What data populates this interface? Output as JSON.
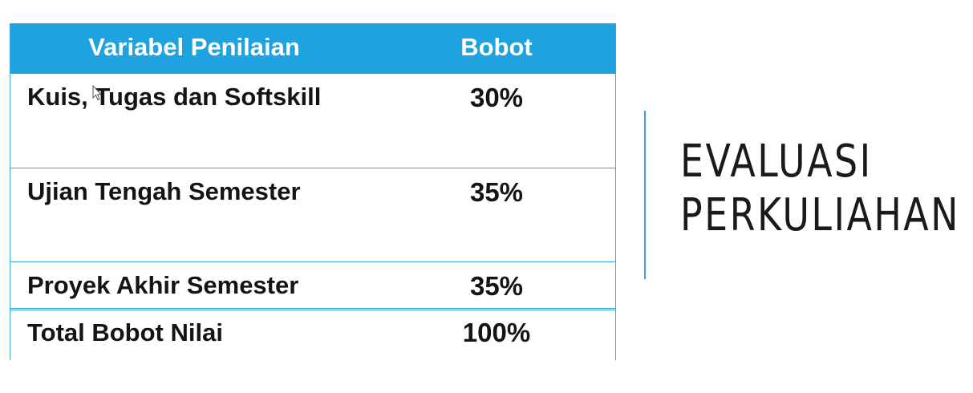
{
  "table": {
    "headers": {
      "variable": "Variabel Penilaian",
      "weight": "Bobot"
    },
    "rows": [
      {
        "label": "Kuis, Tugas dan Softskill",
        "value": "30%"
      },
      {
        "label": "Ujian Tengah Semester",
        "value": "35%"
      },
      {
        "label": "Proyek Akhir Semester",
        "value": "35%"
      }
    ],
    "total": {
      "label": "Total Bobot Nilai",
      "value": "100%"
    }
  },
  "title": {
    "line1": "EVALUASI",
    "line2": "PERKULIAHAN"
  },
  "colors": {
    "header_bg": "#1fa3e0",
    "border": "#39a8dc",
    "text": "#141414"
  }
}
